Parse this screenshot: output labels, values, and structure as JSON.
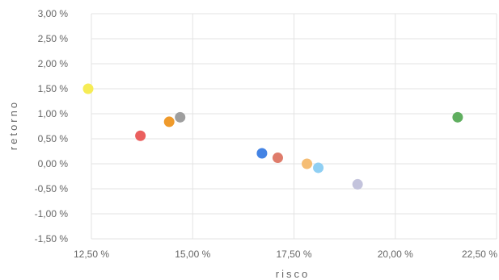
{
  "chart_data": {
    "type": "scatter",
    "title": "",
    "xlabel": "risco",
    "ylabel": "retorno",
    "xlim": [
      12.5,
      22.5
    ],
    "ylim": [
      -1.5,
      3.0
    ],
    "x_ticks": [
      12.5,
      15.0,
      17.5,
      20.0,
      22.5
    ],
    "x_tick_labels": [
      "12,50 %",
      "15,00 %",
      "17,50 %",
      "20,00 %",
      "22,50 %"
    ],
    "y_ticks": [
      3.0,
      2.5,
      2.0,
      1.5,
      1.0,
      0.5,
      0.0,
      -0.5,
      -1.0,
      -1.5
    ],
    "y_tick_labels": [
      "3,00 %",
      "2,50 %",
      "2,00 %",
      "1,50 %",
      "1,00 %",
      "0,50 %",
      "0,00 %",
      "-0,50 %",
      "-1,00 %",
      "-1,50 %"
    ],
    "grid": true,
    "legend": "none",
    "points": [
      {
        "x": 12.42,
        "y": 1.5,
        "color": "#f6ec55"
      },
      {
        "x": 13.71,
        "y": 0.56,
        "color": "#ea5f5e"
      },
      {
        "x": 14.42,
        "y": 0.84,
        "color": "#ef9a2b"
      },
      {
        "x": 14.69,
        "y": 0.93,
        "color": "#9e9e9e"
      },
      {
        "x": 16.71,
        "y": 0.21,
        "color": "#4383e4"
      },
      {
        "x": 17.1,
        "y": 0.12,
        "color": "#df7c6b"
      },
      {
        "x": 17.82,
        "y": 0.0,
        "color": "#f5bd74"
      },
      {
        "x": 18.1,
        "y": -0.08,
        "color": "#8fcff3"
      },
      {
        "x": 19.07,
        "y": -0.41,
        "color": "#c3c3dc"
      },
      {
        "x": 21.54,
        "y": 0.93,
        "color": "#5fae5f"
      }
    ]
  }
}
